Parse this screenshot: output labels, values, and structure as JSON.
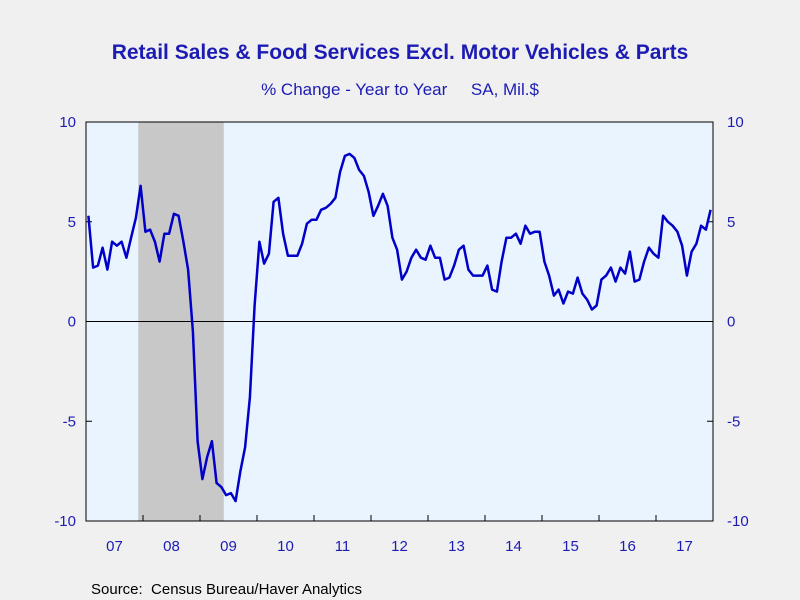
{
  "chart_data": {
    "type": "line",
    "title": "Retail Sales & Food Services Excl. Motor Vehicles & Parts",
    "subtitle": "% Change - Year to Year     SA, Mil.$",
    "source": "Source:  Census Bureau/Haver Analytics",
    "x_tick_labels": [
      "07",
      "08",
      "09",
      "10",
      "11",
      "12",
      "13",
      "14",
      "15",
      "16",
      "17"
    ],
    "y_tick_labels": [
      "10",
      "5",
      "0",
      "-5",
      "-10"
    ],
    "ylim": [
      -10,
      10
    ],
    "y_ticks": [
      10,
      5,
      0,
      -5,
      -10
    ],
    "xlim": [
      2007.0,
      2018.0
    ],
    "recession_shading": [
      2007.917,
      2009.417
    ],
    "zero_line": true,
    "grid": false,
    "colors": {
      "line": "#0000c8",
      "text": "#1c1cb4",
      "plot_background": "#eaf4ff",
      "recession": "#c8c8c8",
      "page_background": "#f0f0f0"
    },
    "series": [
      {
        "values": [
          [
            2007.042,
            5.3
          ],
          [
            2007.125,
            2.7
          ],
          [
            2007.208,
            2.8
          ],
          [
            2007.292,
            3.7
          ],
          [
            2007.375,
            2.6
          ],
          [
            2007.458,
            4.0
          ],
          [
            2007.542,
            3.8
          ],
          [
            2007.625,
            4.0
          ],
          [
            2007.708,
            3.2
          ],
          [
            2007.792,
            4.2
          ],
          [
            2007.875,
            5.2
          ],
          [
            2007.958,
            6.8
          ],
          [
            2008.042,
            4.5
          ],
          [
            2008.125,
            4.6
          ],
          [
            2008.208,
            4.0
          ],
          [
            2008.292,
            3.0
          ],
          [
            2008.375,
            4.4
          ],
          [
            2008.458,
            4.4
          ],
          [
            2008.542,
            5.4
          ],
          [
            2008.625,
            5.3
          ],
          [
            2008.708,
            4.0
          ],
          [
            2008.792,
            2.6
          ],
          [
            2008.875,
            -0.5
          ],
          [
            2008.958,
            -6.0
          ],
          [
            2009.042,
            -7.9
          ],
          [
            2009.125,
            -6.8
          ],
          [
            2009.208,
            -6.0
          ],
          [
            2009.292,
            -8.1
          ],
          [
            2009.375,
            -8.3
          ],
          [
            2009.458,
            -8.7
          ],
          [
            2009.542,
            -8.6
          ],
          [
            2009.625,
            -9.0
          ],
          [
            2009.708,
            -7.5
          ],
          [
            2009.792,
            -6.3
          ],
          [
            2009.875,
            -3.8
          ],
          [
            2009.958,
            0.8
          ],
          [
            2010.042,
            4.0
          ],
          [
            2010.125,
            2.9
          ],
          [
            2010.208,
            3.4
          ],
          [
            2010.292,
            6.0
          ],
          [
            2010.375,
            6.2
          ],
          [
            2010.458,
            4.4
          ],
          [
            2010.542,
            3.3
          ],
          [
            2010.625,
            3.3
          ],
          [
            2010.708,
            3.3
          ],
          [
            2010.792,
            3.9
          ],
          [
            2010.875,
            4.9
          ],
          [
            2010.958,
            5.1
          ],
          [
            2011.042,
            5.1
          ],
          [
            2011.125,
            5.6
          ],
          [
            2011.208,
            5.7
          ],
          [
            2011.292,
            5.9
          ],
          [
            2011.375,
            6.2
          ],
          [
            2011.458,
            7.5
          ],
          [
            2011.542,
            8.3
          ],
          [
            2011.625,
            8.4
          ],
          [
            2011.708,
            8.2
          ],
          [
            2011.792,
            7.6
          ],
          [
            2011.875,
            7.3
          ],
          [
            2011.958,
            6.5
          ],
          [
            2012.042,
            5.3
          ],
          [
            2012.125,
            5.8
          ],
          [
            2012.208,
            6.4
          ],
          [
            2012.292,
            5.8
          ],
          [
            2012.375,
            4.2
          ],
          [
            2012.458,
            3.6
          ],
          [
            2012.542,
            2.1
          ],
          [
            2012.625,
            2.5
          ],
          [
            2012.708,
            3.2
          ],
          [
            2012.792,
            3.6
          ],
          [
            2012.875,
            3.2
          ],
          [
            2012.958,
            3.1
          ],
          [
            2013.042,
            3.8
          ],
          [
            2013.125,
            3.2
          ],
          [
            2013.208,
            3.2
          ],
          [
            2013.292,
            2.1
          ],
          [
            2013.375,
            2.2
          ],
          [
            2013.458,
            2.8
          ],
          [
            2013.542,
            3.6
          ],
          [
            2013.625,
            3.8
          ],
          [
            2013.708,
            2.6
          ],
          [
            2013.792,
            2.3
          ],
          [
            2013.875,
            2.3
          ],
          [
            2013.958,
            2.3
          ],
          [
            2014.042,
            2.8
          ],
          [
            2014.125,
            1.6
          ],
          [
            2014.208,
            1.5
          ],
          [
            2014.292,
            3.0
          ],
          [
            2014.375,
            4.2
          ],
          [
            2014.458,
            4.2
          ],
          [
            2014.542,
            4.4
          ],
          [
            2014.625,
            3.9
          ],
          [
            2014.708,
            4.8
          ],
          [
            2014.792,
            4.4
          ],
          [
            2014.875,
            4.5
          ],
          [
            2014.958,
            4.5
          ],
          [
            2015.042,
            3.0
          ],
          [
            2015.125,
            2.3
          ],
          [
            2015.208,
            1.3
          ],
          [
            2015.292,
            1.6
          ],
          [
            2015.375,
            0.9
          ],
          [
            2015.458,
            1.5
          ],
          [
            2015.542,
            1.4
          ],
          [
            2015.625,
            2.2
          ],
          [
            2015.708,
            1.4
          ],
          [
            2015.792,
            1.1
          ],
          [
            2015.875,
            0.6
          ],
          [
            2015.958,
            0.8
          ],
          [
            2016.042,
            2.1
          ],
          [
            2016.125,
            2.3
          ],
          [
            2016.208,
            2.7
          ],
          [
            2016.292,
            2.0
          ],
          [
            2016.375,
            2.7
          ],
          [
            2016.458,
            2.4
          ],
          [
            2016.542,
            3.5
          ],
          [
            2016.625,
            2.0
          ],
          [
            2016.708,
            2.1
          ],
          [
            2016.792,
            3.0
          ],
          [
            2016.875,
            3.7
          ],
          [
            2016.958,
            3.4
          ],
          [
            2017.042,
            3.2
          ],
          [
            2017.125,
            5.3
          ],
          [
            2017.208,
            5.0
          ],
          [
            2017.292,
            4.8
          ],
          [
            2017.375,
            4.5
          ],
          [
            2017.458,
            3.8
          ],
          [
            2017.542,
            2.3
          ],
          [
            2017.625,
            3.5
          ],
          [
            2017.708,
            3.9
          ],
          [
            2017.792,
            4.8
          ],
          [
            2017.875,
            4.6
          ],
          [
            2017.958,
            5.6
          ]
        ]
      }
    ]
  }
}
